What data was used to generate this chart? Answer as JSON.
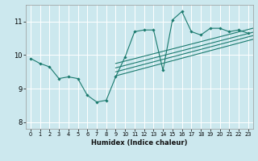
{
  "title": "",
  "xlabel": "Humidex (Indice chaleur)",
  "ylabel": "",
  "bg_color": "#cce8ee",
  "line_color": "#1a7a6e",
  "grid_color": "#ffffff",
  "xlim": [
    -0.5,
    23.5
  ],
  "ylim": [
    7.8,
    11.5
  ],
  "yticks": [
    8,
    9,
    10,
    11
  ],
  "xticks": [
    0,
    1,
    2,
    3,
    4,
    5,
    6,
    7,
    8,
    9,
    10,
    11,
    12,
    13,
    14,
    15,
    16,
    17,
    18,
    19,
    20,
    21,
    22,
    23
  ],
  "main_data": [
    [
      0,
      9.9
    ],
    [
      1,
      9.75
    ],
    [
      2,
      9.65
    ],
    [
      3,
      9.3
    ],
    [
      4,
      9.35
    ],
    [
      5,
      9.3
    ],
    [
      6,
      8.8
    ],
    [
      7,
      8.6
    ],
    [
      8,
      8.65
    ],
    [
      9,
      9.35
    ],
    [
      10,
      9.95
    ],
    [
      11,
      10.7
    ],
    [
      12,
      10.75
    ],
    [
      13,
      10.75
    ],
    [
      14,
      9.55
    ],
    [
      15,
      11.05
    ],
    [
      16,
      11.3
    ],
    [
      17,
      10.7
    ],
    [
      18,
      10.6
    ],
    [
      19,
      10.8
    ],
    [
      20,
      10.8
    ],
    [
      21,
      10.7
    ],
    [
      22,
      10.75
    ],
    [
      23,
      10.65
    ]
  ],
  "regression_lines": [
    {
      "x0": 9.0,
      "y0": 9.75,
      "x1": 23.5,
      "y1": 10.8
    },
    {
      "x0": 9.0,
      "y0": 9.62,
      "x1": 23.5,
      "y1": 10.68
    },
    {
      "x0": 9.0,
      "y0": 9.5,
      "x1": 23.5,
      "y1": 10.58
    },
    {
      "x0": 9.0,
      "y0": 9.38,
      "x1": 23.5,
      "y1": 10.47
    }
  ]
}
